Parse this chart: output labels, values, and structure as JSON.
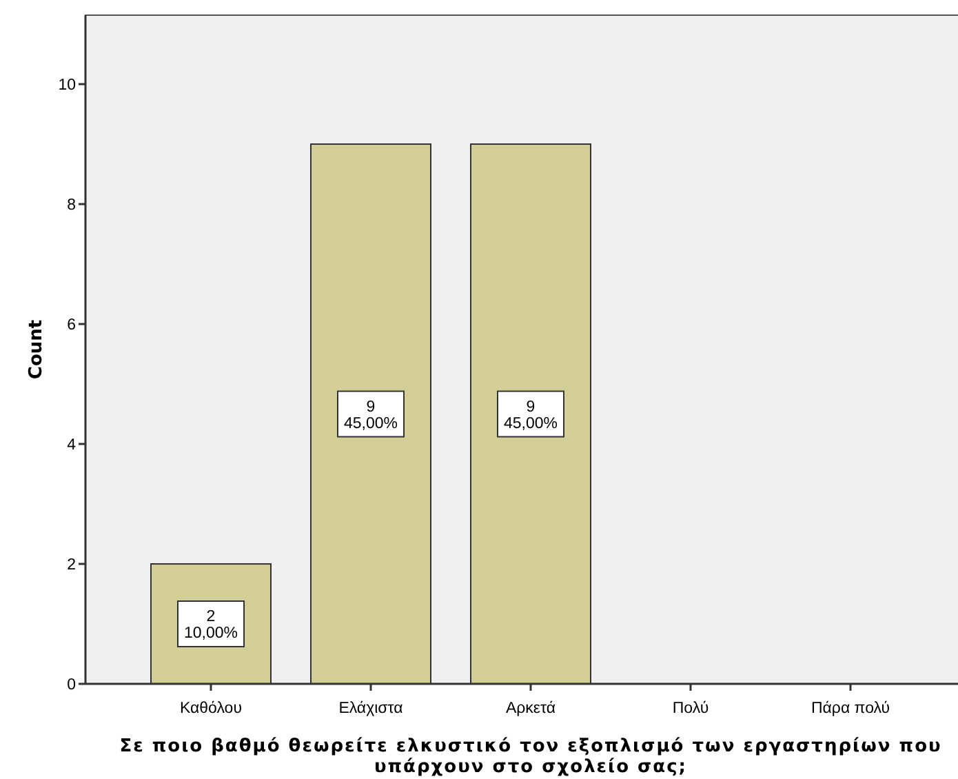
{
  "chart_data": {
    "type": "bar",
    "xlabel": "Σε ποιο βαθμό θεωρείτε ελκυστικό τον εξοπλισμό των εργαστηρίων που υπάρχουν στο σχολείο σας;",
    "ylabel": "Count",
    "categories": [
      "Καθόλου",
      "Ελάχιστα",
      "Αρκετά",
      "Πολύ",
      "Πάρα πολύ"
    ],
    "values": [
      2,
      9,
      9,
      0,
      0
    ],
    "value_labels": [
      "2\n10,00%",
      "9\n45,00%",
      "9\n45,00%",
      null,
      null
    ],
    "color": "#d3ce97",
    "ylim": [
      0,
      11.15
    ],
    "yticks": [
      0,
      2,
      4,
      6,
      8,
      10
    ]
  }
}
